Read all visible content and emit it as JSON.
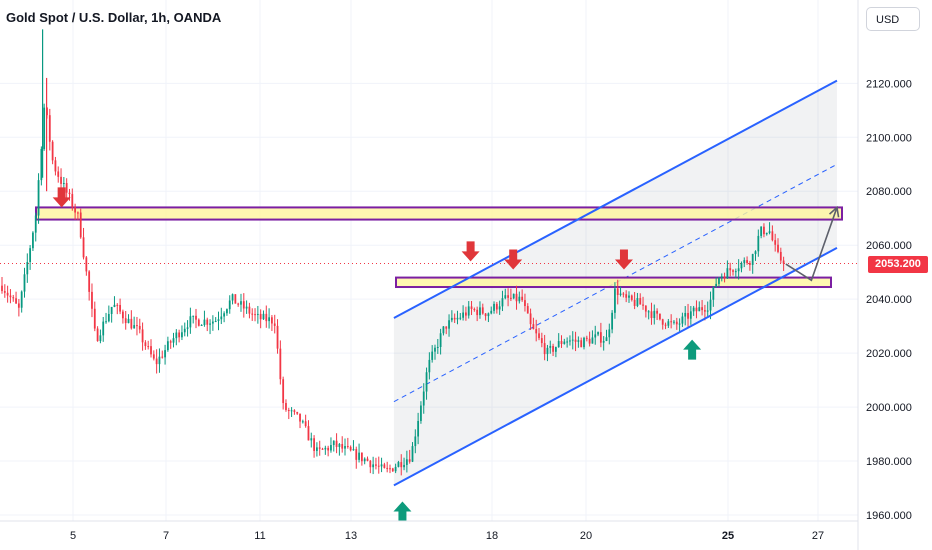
{
  "header": {
    "symbol_title": "Gold Spot / U.S. Dollar, 1h, OANDA",
    "currency_button": "USD"
  },
  "last_price": "2053.200",
  "colors": {
    "bull": "#089981",
    "bear": "#f23645",
    "channel": "#2962ff",
    "zone_fill": "#fff59d",
    "zone_border": "#7b1fa2",
    "price_line": "#f23645",
    "projection": "#5d606b"
  },
  "chart_data": {
    "type": "candlestick",
    "title": "Gold Spot / U.S. Dollar, 1h, OANDA",
    "xlabel": "",
    "ylabel": "",
    "ylim": [
      1956,
      2134
    ],
    "x_ticks": [
      "5",
      "7",
      "11",
      "13",
      "18",
      "20",
      "25",
      "27"
    ],
    "y_ticks": [
      "1960.000",
      "1980.000",
      "2000.000",
      "2020.000",
      "2040.000",
      "2060.000",
      "2080.000",
      "2100.000",
      "2120.000"
    ],
    "price_path": [
      {
        "x": 0,
        "y": 2045
      },
      {
        "x": 2,
        "y": 2036
      },
      {
        "x": 4,
        "y": 2072
      },
      {
        "x": 5,
        "y": 2113
      },
      {
        "x": 6,
        "y": 2090
      },
      {
        "x": 9,
        "y": 2070
      },
      {
        "x": 11,
        "y": 2025
      },
      {
        "x": 13,
        "y": 2038
      },
      {
        "x": 16,
        "y": 2028
      },
      {
        "x": 18,
        "y": 2016
      },
      {
        "x": 20,
        "y": 2025
      },
      {
        "x": 22,
        "y": 2032
      },
      {
        "x": 25,
        "y": 2032
      },
      {
        "x": 27,
        "y": 2040
      },
      {
        "x": 30,
        "y": 2033
      },
      {
        "x": 32,
        "y": 2032
      },
      {
        "x": 33,
        "y": 2000
      },
      {
        "x": 35,
        "y": 1995
      },
      {
        "x": 37,
        "y": 1983
      },
      {
        "x": 39,
        "y": 1986
      },
      {
        "x": 41,
        "y": 1983
      },
      {
        "x": 43,
        "y": 1980
      },
      {
        "x": 45,
        "y": 1976
      },
      {
        "x": 48,
        "y": 1982
      },
      {
        "x": 50,
        "y": 2015
      },
      {
        "x": 52,
        "y": 2030
      },
      {
        "x": 55,
        "y": 2036
      },
      {
        "x": 57,
        "y": 2035
      },
      {
        "x": 59,
        "y": 2040
      },
      {
        "x": 61,
        "y": 2040
      },
      {
        "x": 62,
        "y": 2030
      },
      {
        "x": 64,
        "y": 2020
      },
      {
        "x": 66,
        "y": 2025
      },
      {
        "x": 68,
        "y": 2024
      },
      {
        "x": 70,
        "y": 2026
      },
      {
        "x": 71,
        "y": 2025
      },
      {
        "x": 72,
        "y": 2044
      },
      {
        "x": 73,
        "y": 2040
      },
      {
        "x": 75,
        "y": 2038
      },
      {
        "x": 77,
        "y": 2033
      },
      {
        "x": 79,
        "y": 2030
      },
      {
        "x": 81,
        "y": 2035
      },
      {
        "x": 83,
        "y": 2038
      },
      {
        "x": 84,
        "y": 2048
      },
      {
        "x": 86,
        "y": 2052
      },
      {
        "x": 88,
        "y": 2055
      },
      {
        "x": 89,
        "y": 2065
      },
      {
        "x": 90,
        "y": 2066
      },
      {
        "x": 91,
        "y": 2056
      },
      {
        "x": 92,
        "y": 2053
      }
    ],
    "drawings": {
      "resistance_zone": [
        2069.5,
        2074.0
      ],
      "support_zone": [
        2044.5,
        2048.0
      ],
      "channel_upper": [
        {
          "x": 46,
          "y": 2033
        },
        {
          "x": 98,
          "y": 2121
        }
      ],
      "channel_mid": [
        {
          "x": 46,
          "y": 2002
        },
        {
          "x": 98,
          "y": 2090
        }
      ],
      "channel_lower": [
        {
          "x": 46,
          "y": 1971
        },
        {
          "x": 98,
          "y": 2059
        }
      ],
      "projection": [
        {
          "x": 92,
          "y": 2053
        },
        {
          "x": 95,
          "y": 2047
        },
        {
          "x": 98,
          "y": 2074
        }
      ],
      "down_arrows": [
        {
          "x": 7,
          "y": 2074
        },
        {
          "x": 55,
          "y": 2054
        },
        {
          "x": 60,
          "y": 2051
        },
        {
          "x": 73,
          "y": 2051
        }
      ],
      "up_arrows": [
        {
          "x": 47,
          "y": 1965
        },
        {
          "x": 81,
          "y": 2025
        }
      ]
    },
    "grid": true,
    "legend": "none"
  }
}
